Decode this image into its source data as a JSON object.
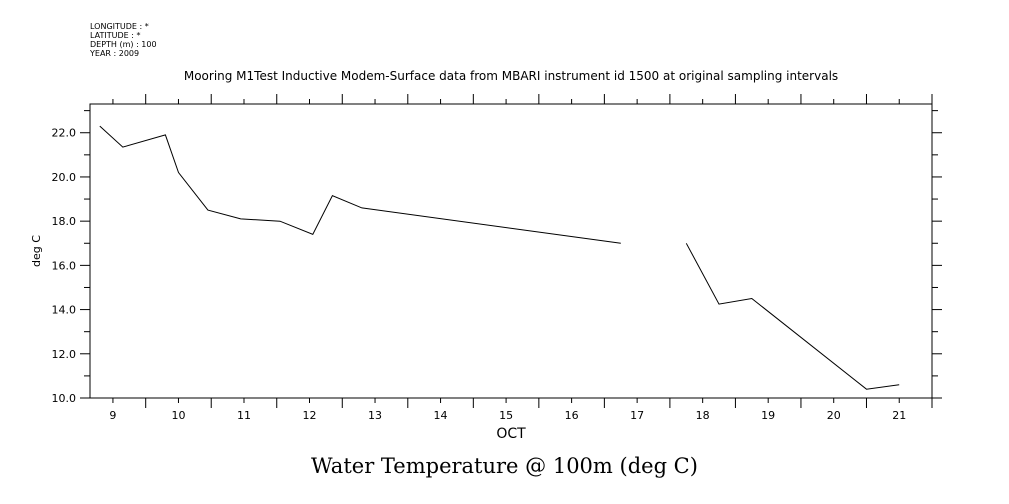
{
  "header": {
    "longitude_line": "LONGITUDE : *",
    "latitude_line": "LATITUDE : *",
    "depth_line": "DEPTH (m) : 100",
    "year_line": "YEAR : 2009"
  },
  "footer_title": "Water Temperature @ 100m (deg C)",
  "chart_data": {
    "type": "line",
    "title": "Mooring M1Test Inductive Modem-Surface data from MBARI instrument id 1500 at original sampling intervals",
    "xlabel": "OCT",
    "ylabel": "deg C",
    "xlim": [
      8.65,
      21.5
    ],
    "ylim": [
      10.0,
      23.3
    ],
    "x_ticks": [
      9,
      10,
      11,
      12,
      13,
      14,
      15,
      16,
      17,
      18,
      19,
      20,
      21
    ],
    "x_tick_labels": [
      "9",
      "10",
      "11",
      "12",
      "13",
      "14",
      "15",
      "16",
      "17",
      "18",
      "19",
      "20",
      "21"
    ],
    "y_ticks": [
      10.0,
      12.0,
      14.0,
      16.0,
      18.0,
      20.0,
      22.0
    ],
    "y_tick_labels": [
      "10.0",
      "12.0",
      "14.0",
      "16.0",
      "18.0",
      "20.0",
      "22.0"
    ],
    "grid": false,
    "series": [
      {
        "segments": [
          [
            [
              8.8,
              22.3
            ],
            [
              9.15,
              21.35
            ],
            [
              9.8,
              21.9
            ],
            [
              10.0,
              20.2
            ],
            [
              10.45,
              18.5
            ],
            [
              10.95,
              18.1
            ],
            [
              11.55,
              18.0
            ],
            [
              12.05,
              17.4
            ],
            [
              12.35,
              19.15
            ],
            [
              12.8,
              18.6
            ],
            [
              16.75,
              17.0
            ]
          ],
          [
            [
              17.75,
              17.0
            ],
            [
              18.25,
              14.25
            ],
            [
              18.75,
              14.5
            ],
            [
              20.5,
              10.4
            ],
            [
              21.0,
              10.6
            ]
          ]
        ]
      }
    ]
  }
}
